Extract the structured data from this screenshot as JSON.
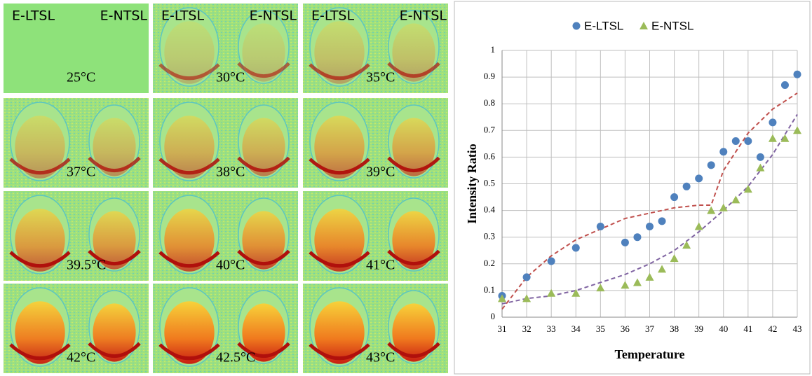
{
  "panels": [
    {
      "labels": [
        "E-LTSL",
        "E-NTSL"
      ],
      "temperature": "25°C"
    },
    {
      "labels": [
        "E-LTSL",
        "E-NTSL"
      ],
      "temperature": "30°C"
    },
    {
      "labels": [
        "E-LTSL",
        "E-NTSL"
      ],
      "temperature": "35°C"
    },
    {
      "temperature": "37°C"
    },
    {
      "temperature": "38°C"
    },
    {
      "temperature": "39°C"
    },
    {
      "temperature": "39.5°C"
    },
    {
      "temperature": "40°C"
    },
    {
      "temperature": "41°C"
    },
    {
      "temperature": "42°C"
    },
    {
      "temperature": "42.5°C"
    },
    {
      "temperature": "43°C"
    }
  ],
  "chart_data": {
    "type": "scatter",
    "xlabel": "Temperature",
    "ylabel": "Intensity Ratio",
    "x": [
      31,
      32,
      33,
      34,
      35,
      36,
      36.5,
      37,
      37.5,
      38,
      38.5,
      39,
      39.5,
      40,
      40.5,
      41,
      41.5,
      42,
      42.5,
      43
    ],
    "series": [
      {
        "name": "E-LTSL",
        "color": "#4f81bd",
        "marker": "circle",
        "values": [
          0.08,
          0.15,
          0.21,
          0.26,
          0.34,
          0.28,
          0.3,
          0.34,
          0.36,
          0.45,
          0.49,
          0.52,
          0.57,
          0.62,
          0.66,
          0.66,
          0.6,
          0.73,
          0.87,
          0.91
        ]
      },
      {
        "name": "E-NTSL",
        "color": "#9bbb59",
        "marker": "triangle",
        "values": [
          0.07,
          0.07,
          0.09,
          0.09,
          0.11,
          0.12,
          0.13,
          0.15,
          0.18,
          0.22,
          0.27,
          0.34,
          0.4,
          0.41,
          0.44,
          0.48,
          0.56,
          0.67,
          0.67,
          0.7
        ]
      }
    ],
    "trendlines": [
      {
        "color": "#c0504d",
        "x": [
          31,
          32,
          33,
          34,
          35,
          36,
          37,
          38,
          39,
          39.5,
          40,
          41,
          42,
          43
        ],
        "values": [
          0.03,
          0.15,
          0.23,
          0.29,
          0.33,
          0.37,
          0.39,
          0.41,
          0.42,
          0.42,
          0.55,
          0.69,
          0.78,
          0.84
        ]
      },
      {
        "color": "#8064a2",
        "x": [
          31,
          32,
          33,
          34,
          35,
          36,
          37,
          38,
          39,
          40,
          41,
          42,
          43
        ],
        "values": [
          0.05,
          0.07,
          0.08,
          0.1,
          0.13,
          0.16,
          0.2,
          0.25,
          0.32,
          0.4,
          0.49,
          0.61,
          0.76
        ]
      }
    ],
    "xlim": [
      31,
      43
    ],
    "xticks": [
      31,
      32,
      33,
      34,
      35,
      36,
      37,
      38,
      39,
      40,
      41,
      42,
      43
    ],
    "ylim": [
      0,
      1
    ],
    "yticks": [
      0,
      0.1,
      0.2,
      0.3,
      0.4,
      0.5,
      0.6,
      0.7,
      0.8,
      0.9,
      1
    ],
    "grid": true,
    "legend": "top"
  }
}
